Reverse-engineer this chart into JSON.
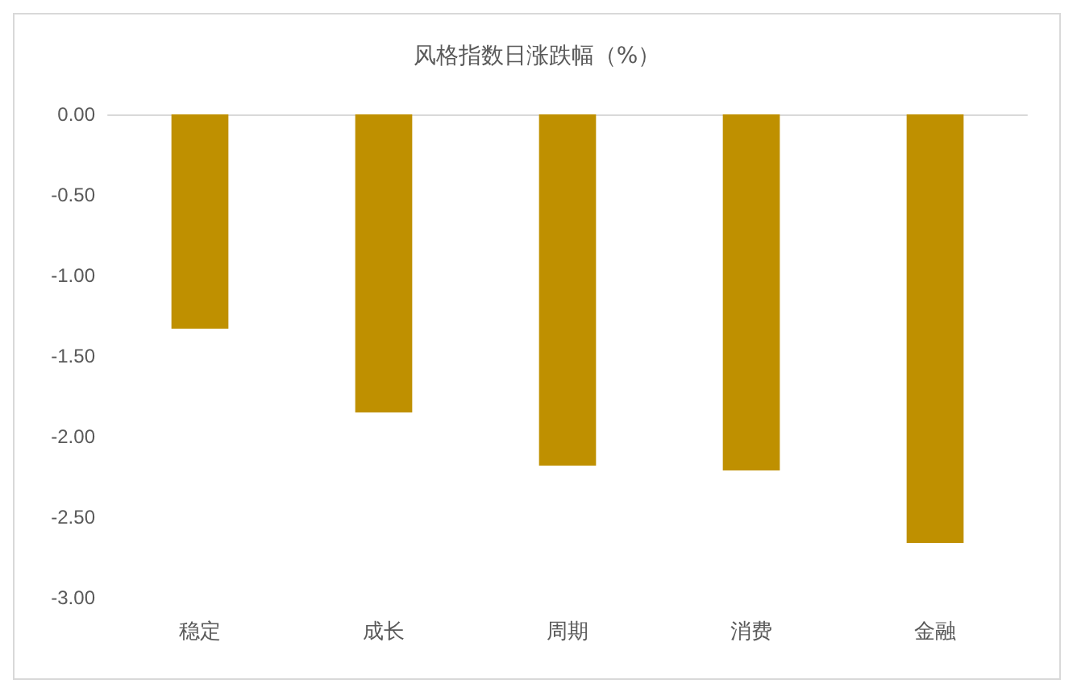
{
  "chart_data": {
    "type": "bar",
    "title": "风格指数日涨跌幅（%）",
    "categories": [
      "稳定",
      "成长",
      "周期",
      "消费",
      "金融"
    ],
    "values": [
      -1.33,
      -1.85,
      -2.18,
      -2.21,
      -2.66
    ],
    "color": "#bf9000",
    "ylim": [
      -3,
      0
    ],
    "yticks": [
      {
        "value": 0,
        "label": "0.00"
      },
      {
        "value": -0.5,
        "label": "-0.50"
      },
      {
        "value": -1,
        "label": "-1.00"
      },
      {
        "value": -1.5,
        "label": "-1.50"
      },
      {
        "value": -2,
        "label": "-2.00"
      },
      {
        "value": -2.5,
        "label": "-2.50"
      },
      {
        "value": -3,
        "label": "-3.00"
      }
    ],
    "grid": false
  }
}
